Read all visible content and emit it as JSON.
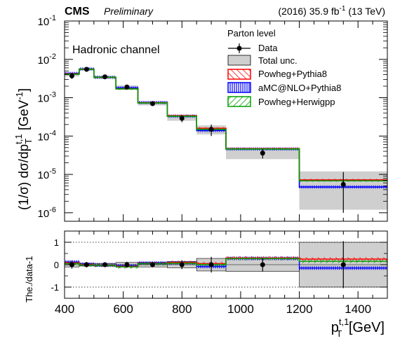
{
  "header": {
    "experiment": "CMS",
    "status": "Preliminary",
    "lumi_prefix": "(2016) 35.9 fb",
    "lumi_exp": "-1",
    "lumi_suffix": " (13 TeV)"
  },
  "top_panel": {
    "ylabel_main": "(1/σ) dσ/dp",
    "ylabel_sub": "T",
    "ylabel_sup": "t,1",
    "ylabel_unit": " [GeV",
    "ylabel_unit_exp": "-1",
    "ylabel_close": "]",
    "channel_label": "Hadronic channel",
    "ytick_base": "10",
    "yticks_exp": [
      "-6",
      "-5",
      "-4",
      "-3",
      "-2",
      "-1"
    ],
    "legend": {
      "title": "Parton level",
      "entries": [
        {
          "label": "Data",
          "kind": "data"
        },
        {
          "label": "Total unc.",
          "kind": "band",
          "color": "#cfcfcf"
        },
        {
          "label": "Powheg+Pythia8",
          "kind": "hatch",
          "color": "#ff0000"
        },
        {
          "label": "aMC@NLO+Pythia8",
          "kind": "vert",
          "color": "#0000ff"
        },
        {
          "label": "Powheg+Herwigpp",
          "kind": "hatch",
          "color": "#00a000"
        }
      ]
    }
  },
  "ratio_panel": {
    "ylabel": "The./data-1",
    "yticks": [
      "-1",
      "0",
      "1"
    ]
  },
  "x_axis": {
    "label_main": "p",
    "label_sub": "T",
    "label_sup": "t,1",
    "label_unit": " [GeV]",
    "ticks": [
      "400",
      "600",
      "800",
      "1000",
      "1200",
      "1400"
    ]
  },
  "colors": {
    "band": "#cfcfcf",
    "powheg_pythia": "#ff0000",
    "amcnlo": "#0000ff",
    "powheg_herwig": "#00a000"
  },
  "chart_data": {
    "type": "bar",
    "x_edges": [
      400,
      450,
      500,
      575,
      650,
      750,
      850,
      950,
      1200,
      1500
    ],
    "xlim": [
      400,
      1500
    ],
    "ylim": [
      6e-07,
      0.1
    ],
    "yscale": "log",
    "ratio_ylim": [
      -1.5,
      1.5
    ],
    "series": [
      {
        "name": "Data",
        "x": [
          425,
          475,
          537.5,
          612.5,
          700,
          800,
          900,
          1075,
          1350
        ],
        "values": [
          0.0037,
          0.0055,
          0.0035,
          0.0019,
          0.0007,
          0.00029,
          0.00015,
          3.6e-05,
          5.5e-06
        ],
        "yerr_lo": [
          0.0006,
          0.0006,
          0.0004,
          0.00025,
          8e-05,
          6e-05,
          5e-05,
          1e-05,
          4.5e-06
        ],
        "yerr_hi": [
          0.0006,
          0.0006,
          0.0004,
          0.00025,
          8e-05,
          6e-05,
          5e-05,
          1e-05,
          6e-06
        ]
      },
      {
        "name": "Total unc.",
        "lo": [
          0.0036,
          0.0052,
          0.0033,
          0.0017,
          0.00063,
          0.00025,
          0.00011,
          2.5e-05,
          1.2e-06
        ],
        "hi": [
          0.0044,
          0.0058,
          0.0037,
          0.0021,
          0.00077,
          0.00033,
          0.00019,
          4.7e-05,
          1.2e-05
        ]
      },
      {
        "name": "Powheg+Pythia8",
        "values": [
          0.0042,
          0.0055,
          0.0034,
          0.0017,
          0.00074,
          0.00034,
          0.00016,
          4.7e-05,
          7.2e-06
        ]
      },
      {
        "name": "aMC@NLO+Pythia8",
        "values": [
          0.0043,
          0.0056,
          0.0034,
          0.0018,
          0.00075,
          0.00033,
          0.00014,
          4.6e-05,
          4.7e-06
        ]
      },
      {
        "name": "Powheg+Herwigpp",
        "values": [
          0.0041,
          0.0055,
          0.0034,
          0.0017,
          0.00073,
          0.00033,
          0.00015,
          4.6e-05,
          6.8e-06
        ]
      }
    ],
    "ratio": {
      "data_err": [
        0.18,
        0.12,
        0.11,
        0.13,
        0.12,
        0.2,
        0.35,
        0.3,
        1.05
      ],
      "band_lo": [
        -0.1,
        -0.06,
        -0.06,
        -0.1,
        -0.1,
        -0.14,
        -0.28,
        -0.3,
        -1
      ],
      "band_hi": [
        0.1,
        0.06,
        0.06,
        0.1,
        0.1,
        0.14,
        0.28,
        0.3,
        1
      ],
      "models": [
        {
          "name": "Powheg+Pythia8",
          "values": [
            0.08,
            0.0,
            -0.02,
            -0.08,
            0.05,
            0.1,
            0.05,
            0.3,
            0.25
          ]
        },
        {
          "name": "aMC@NLO+Pythia8",
          "values": [
            0.12,
            0.02,
            -0.02,
            -0.05,
            0.07,
            0.08,
            -0.08,
            0.28,
            -0.15
          ]
        },
        {
          "name": "Powheg+Herwigpp",
          "values": [
            0.05,
            -0.02,
            -0.03,
            -0.1,
            0.04,
            0.06,
            0.0,
            0.27,
            0.15
          ]
        }
      ]
    }
  }
}
